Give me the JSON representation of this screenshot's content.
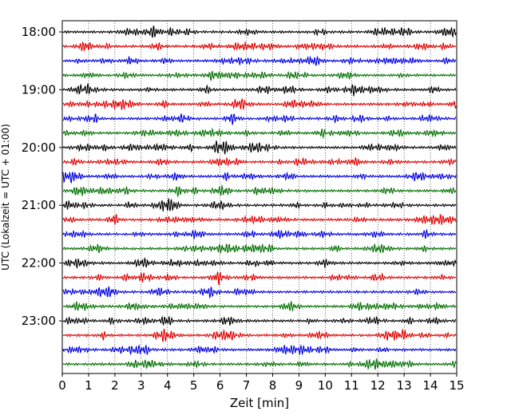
{
  "chart_data": {
    "type": "line",
    "subtype": "helicorder",
    "title": "",
    "xlabel": "Zeit  [min]",
    "ylabel": "UTC (Lokalzeit = UTC + 01:00)",
    "xlim": [
      0,
      15
    ],
    "x_ticks": [
      "0",
      "1",
      "2",
      "3",
      "4",
      "5",
      "6",
      "7",
      "8",
      "9",
      "10",
      "11",
      "12",
      "13",
      "14",
      "15"
    ],
    "y_tick_labels": [
      "18:00",
      "19:00",
      "20:00",
      "21:00",
      "22:00",
      "23:00"
    ],
    "trace_interval_min": 15,
    "trace_start_times": [
      "18:00",
      "18:15",
      "18:30",
      "18:45",
      "19:00",
      "19:15",
      "19:30",
      "19:45",
      "20:00",
      "20:15",
      "20:30",
      "20:45",
      "21:00",
      "21:15",
      "21:30",
      "21:45",
      "22:00",
      "22:15",
      "22:30",
      "22:45",
      "23:00",
      "23:15",
      "23:30",
      "23:45"
    ],
    "trace_colors": [
      "#000000",
      "#e00000",
      "#0000e0",
      "#007000"
    ],
    "grid": {
      "x": "vertical dotted",
      "y": false
    },
    "legend": "none"
  }
}
